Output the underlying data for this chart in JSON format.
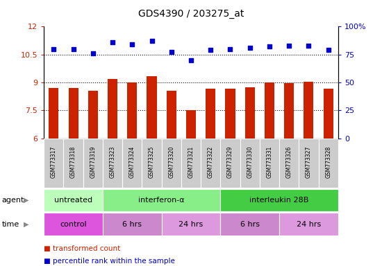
{
  "title": "GDS4390 / 203275_at",
  "samples": [
    "GSM773317",
    "GSM773318",
    "GSM773319",
    "GSM773323",
    "GSM773324",
    "GSM773325",
    "GSM773320",
    "GSM773321",
    "GSM773322",
    "GSM773329",
    "GSM773330",
    "GSM773331",
    "GSM773326",
    "GSM773327",
    "GSM773328"
  ],
  "bar_values": [
    8.7,
    8.7,
    8.55,
    9.2,
    9.0,
    9.35,
    8.55,
    7.5,
    8.65,
    8.65,
    8.75,
    9.0,
    8.95,
    9.05,
    8.65
  ],
  "dot_values": [
    80,
    80,
    76,
    86,
    84,
    87,
    77,
    70,
    79,
    80,
    81,
    82,
    83,
    83,
    79
  ],
  "bar_color": "#cc2200",
  "dot_color": "#0000cc",
  "ylim_left": [
    6,
    12
  ],
  "ylim_right": [
    0,
    100
  ],
  "yticks_left": [
    6,
    7.5,
    9,
    10.5,
    12
  ],
  "yticks_right": [
    0,
    25,
    50,
    75,
    100
  ],
  "ytick_labels_left": [
    "6",
    "7.5",
    "9",
    "10.5",
    "12"
  ],
  "ytick_labels_right": [
    "0",
    "25",
    "50",
    "75",
    "100%"
  ],
  "hlines": [
    7.5,
    9.0,
    10.5
  ],
  "agent_groups": [
    {
      "label": "untreated",
      "start": 0,
      "end": 3,
      "color": "#bbffbb"
    },
    {
      "label": "interferon-α",
      "start": 3,
      "end": 9,
      "color": "#88ee88"
    },
    {
      "label": "interleukin 28B",
      "start": 9,
      "end": 15,
      "color": "#44cc44"
    }
  ],
  "time_groups": [
    {
      "label": "control",
      "start": 0,
      "end": 3,
      "color": "#dd55dd"
    },
    {
      "label": "6 hrs",
      "start": 3,
      "end": 6,
      "color": "#cc88cc"
    },
    {
      "label": "24 hrs",
      "start": 6,
      "end": 9,
      "color": "#dd99dd"
    },
    {
      "label": "6 hrs",
      "start": 9,
      "end": 12,
      "color": "#cc88cc"
    },
    {
      "label": "24 hrs",
      "start": 12,
      "end": 15,
      "color": "#dd99dd"
    }
  ],
  "legend_bar_label": "transformed count",
  "legend_dot_label": "percentile rank within the sample",
  "agent_label": "agent",
  "time_label": "time",
  "sample_row_color": "#cccccc",
  "tick_color_left": "#cc2200",
  "tick_color_right": "#0000cc",
  "bar_width": 0.5
}
